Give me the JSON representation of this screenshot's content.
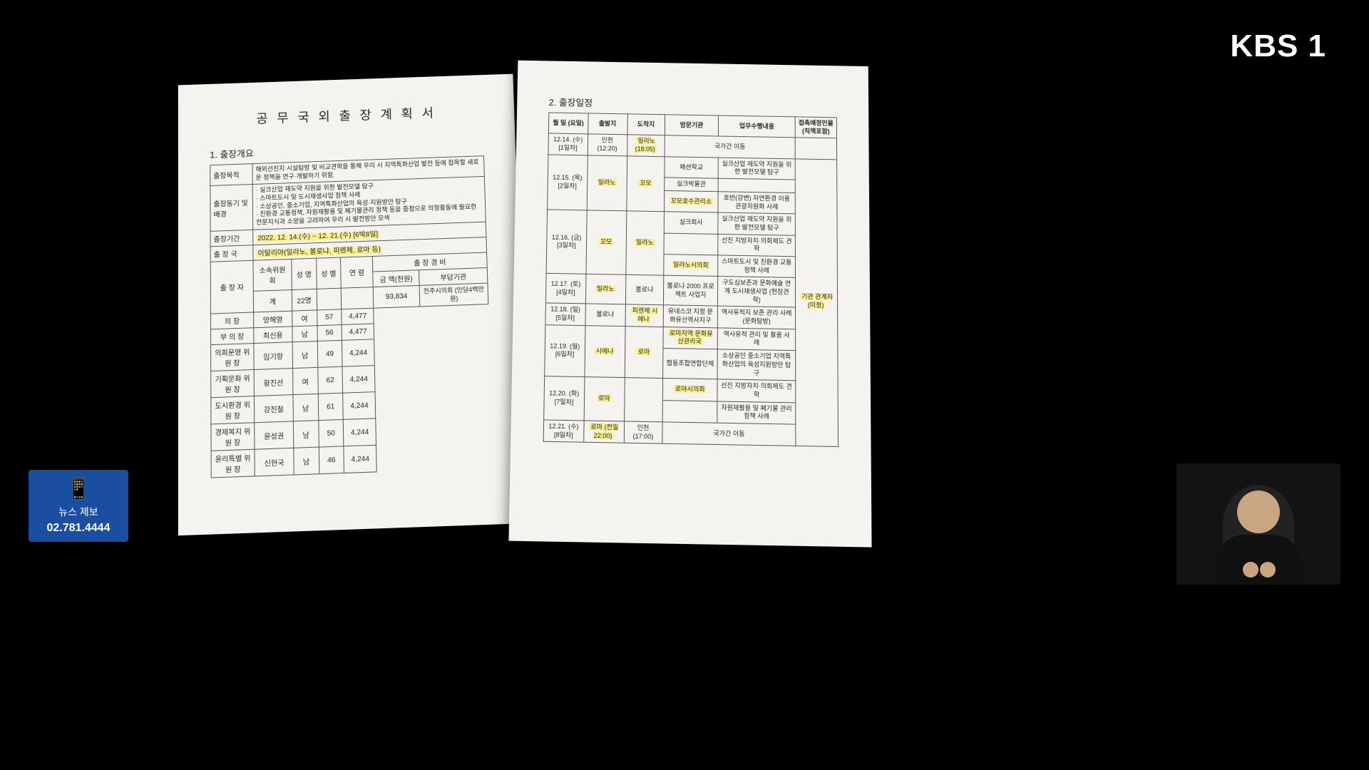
{
  "broadcast": {
    "logo": "KBS 1",
    "tip_label": "뉴스 제보",
    "tip_phone": "02.781.4444"
  },
  "doc": {
    "title": "공 무 국 외 출 장  계 획 서",
    "section1": "1. 출장개요",
    "overview": {
      "purpose_label": "출장목적",
      "purpose": "해외선진지 시설탐방 및 비교견학을 통해 우리 시 지역특화산업 발전 등에 접목할 새로운 정책을 연구·개발하기 위함.",
      "motive_label": "출장동기 및 배경",
      "motive1": "· 실크산업 재도약 지원을 위한 발전모델 탐구",
      "motive2": "· 스마트도시 및 도시재생사업 정책 사례",
      "motive3": "· 소상공인, 중소기업, 지역특화산업의 육성·지원방안 탐구",
      "motive4": "· 친환경 교통정책, 자원재활용 및 폐기물관리 정책 등을 중점으로 의정활동에 필요한 전문지식과 소양을 고려하여 우리 시 발전방안 모색",
      "period_label": "출장기간",
      "period": "2022. 12. 14.(수) ~ 12. 21.(수) [6박8일]",
      "country_label": "출 장 국",
      "country": "이탈리아(밀라노, 볼로냐, 피렌체, 로마 등)",
      "travelers_label": "출 장 자",
      "t_head": [
        "소속위원회",
        "성 명",
        "성 별",
        "연 령",
        "금 액(천원)",
        "부담기관"
      ],
      "t_subhead": "출  장  경  비",
      "total_label": "계",
      "total_count": "22명",
      "total_amount": "93,834",
      "payer": "전주시의회\n(인당4백만원)",
      "rows": [
        [
          "의   장",
          "양해영",
          "여",
          "57",
          "4,477"
        ],
        [
          "부 의 장",
          "최신용",
          "남",
          "56",
          "4,477"
        ],
        [
          "의회운영 위 원 장",
          "임기항",
          "남",
          "49",
          "4,244"
        ],
        [
          "기획문화 위 원 장",
          "황진선",
          "여",
          "62",
          "4,244"
        ],
        [
          "도시환경 위 원 장",
          "강진철",
          "남",
          "61",
          "4,244"
        ],
        [
          "경제복지 위 원 장",
          "윤성권",
          "남",
          "50",
          "4,244"
        ],
        [
          "윤리특별 위 원 장",
          "신현국",
          "남",
          "46",
          "4,244"
        ]
      ]
    },
    "section2": "2. 출장일정",
    "schedule": {
      "head": [
        "월 일\n(요일)",
        "출발지",
        "도착지",
        "방문기관",
        "업무수행내용",
        "접촉예정인물\n(직책포함)"
      ],
      "contact_common": "기관 관계자\n(미정)",
      "rows": [
        {
          "d": "12.14.\n(수)\n[1일차]",
          "dep": "인천\n(12:20)",
          "arr": "밀라노\n(18:05)",
          "org": "국가간 이동",
          "task": "",
          "contact": ""
        },
        {
          "d": "12.15.\n(목)\n[2일차]",
          "dep": "밀라노",
          "arr": "꼬모",
          "orgs": [
            "패션학교",
            "실크박물관",
            "꼬모호수관리소"
          ],
          "tasks": [
            "실크산업 재도약 지원을 위한 발전모델 탐구",
            "",
            "호반(강변) 자연환경 이용 관광자원화 사례"
          ],
          "span": 3
        },
        {
          "d": "12.16.\n(금)\n[3일차]",
          "dep": "꼬모",
          "arr": "밀라노",
          "orgs": [
            "실크회사",
            "",
            "밀라노시의회"
          ],
          "tasks": [
            "실크산업 재도약 지원을 위한 발전모델 탐구",
            "선진 지방자치·의회제도 견학",
            "스마트도시 및 친환경 교통정책 사례"
          ],
          "span": 3
        },
        {
          "d": "12.17.\n(토)\n[4일차]",
          "dep": "밀라노",
          "arr": "볼로냐",
          "org": "볼로냐 2000 프로젝트 사업지",
          "task": "구도심보존과 문화예술 연계 도시재생사업\n(현장견학)",
          "contact": ""
        },
        {
          "d": "12.18.\n(일)\n[5일차]",
          "dep": "볼로냐",
          "arr": "피렌체\n시에나",
          "org": "유네스코 지정 문화유산역사지구",
          "task": "역사유적지 보존 관리 사례(문화탐방)",
          "contact": ""
        },
        {
          "d": "12.19.\n(월)\n[6일차]",
          "dep": "시에나",
          "arr": "로마",
          "orgs": [
            "로마지역 문화유산관리국",
            "협동조합연합단체"
          ],
          "tasks": [
            "역사유적 관리 및 활용 사례",
            "소상공인 중소기업 지역특화산업의 육성지원방안 탐구"
          ],
          "span": 2
        },
        {
          "d": "12.20.\n(화)\n[7일차]",
          "dep": "로마",
          "arr": "",
          "orgs": [
            "로마시의회",
            ""
          ],
          "tasks": [
            "선진 지방자치·의회제도 견학",
            "자원재활용 및 폐기물 관리 정책 사례"
          ],
          "span": 2
        },
        {
          "d": "12.21.\n(수)\n[8일차]",
          "dep": "로마\n(전일22:00)",
          "arr": "인천\n(17:00)",
          "org": "국가간 이동",
          "task": "",
          "contact": ""
        }
      ]
    }
  },
  "colors": {
    "bg": "#000000",
    "paper": "#f5f3ef",
    "highlight": "#fff23c",
    "tipbox": "#1a4ea0"
  }
}
